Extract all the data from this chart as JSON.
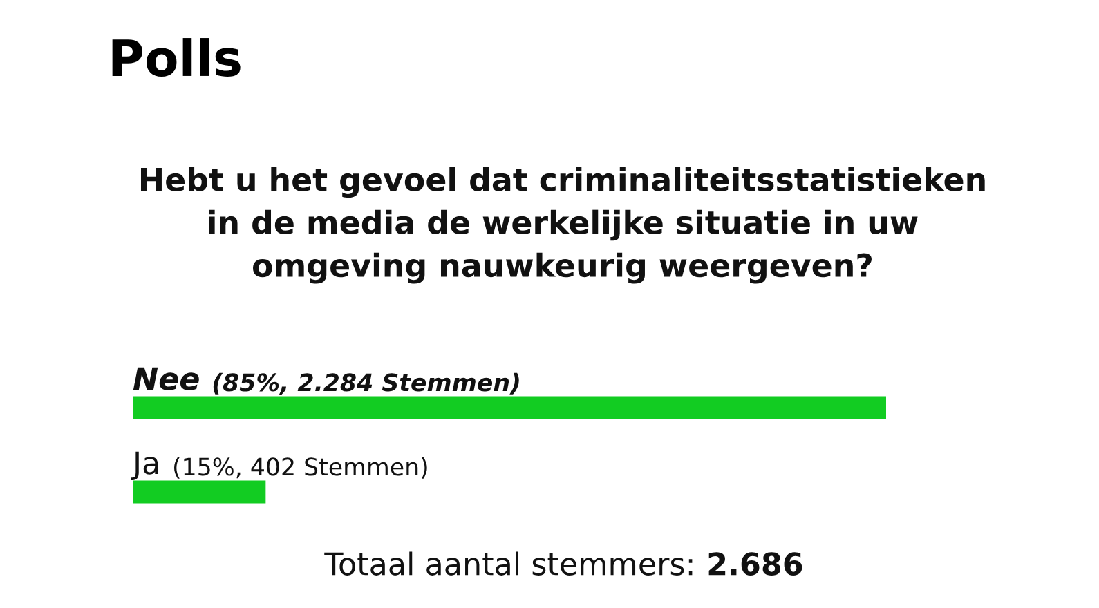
{
  "chart_data": {
    "type": "bar",
    "orientation": "horizontal",
    "title": "Polls",
    "subtitle": "Hebt u het gevoel dat criminaliteitsstatistieken\nin de media de werkelijke situatie in uw\nomgeving nauwkeurig weergeven?",
    "categories": [
      "Nee",
      "Ja"
    ],
    "values": [
      85,
      15
    ],
    "color": "#12cc22",
    "value_labels": [
      "(85%, 2.284 Stemmen)",
      "(15%, 402 Stemmen)"
    ],
    "annotations": [
      "Totaal aantal stemmers:",
      "2.686"
    ]
  }
}
